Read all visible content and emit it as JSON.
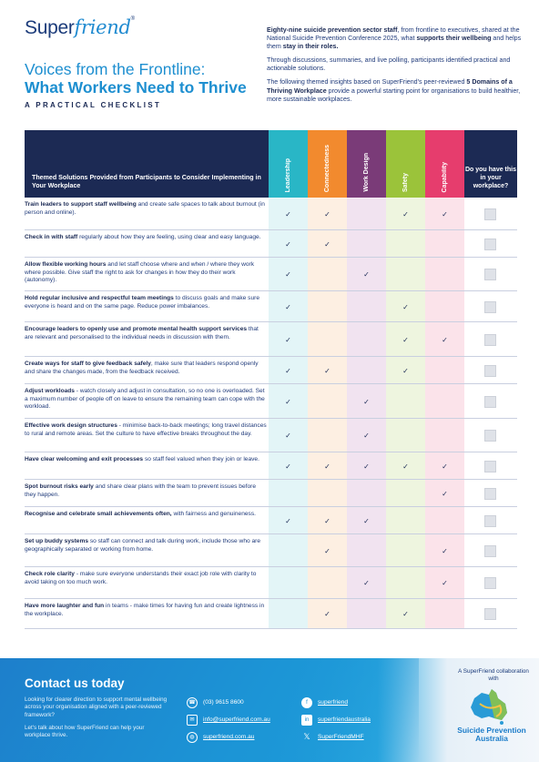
{
  "brand": {
    "logo_prefix": "Super",
    "logo_suffix": "friend",
    "logo_mark": "®"
  },
  "title": {
    "line1": "Voices from the Frontline:",
    "line2": "What Workers Need to Thrive",
    "subtitle": "A PRACTICAL CHECKLIST"
  },
  "intro": {
    "p1_bold": "Eighty-nine suicide prevention sector staff",
    "p1_a": ", from frontline to executives, shared at the National Suicide Prevention Conference 2025, what ",
    "p1_bold2": "supports their wellbeing",
    "p1_b": " and helps them ",
    "p1_bold3": "stay in their roles.",
    "p2": "Through discussions, summaries, and live polling, participants identified practical and actionable solutions.",
    "p3_a": "The following themed insights based on SuperFriend's peer-reviewed ",
    "p3_bold": "5 Domains of a Thriving Workplace",
    "p3_b": " provide a powerful starting point for organisations to build healthier, more sustainable workplaces."
  },
  "table": {
    "header": "Themed Solutions Provided from Participants to Consider Implementing in Your Workplace",
    "columns": [
      {
        "label": "Leadership",
        "color": "#29b6c6",
        "tint": "#e3f5f7"
      },
      {
        "label": "Connectedness",
        "color": "#f28a2e",
        "tint": "#fdefe2"
      },
      {
        "label": "Work Design",
        "color": "#7a3b78",
        "tint": "#f1e3f0"
      },
      {
        "label": "Safety",
        "color": "#9bc33a",
        "tint": "#eef5df"
      },
      {
        "label": "Capability",
        "color": "#e63d6d",
        "tint": "#fbe3ea"
      }
    ],
    "last_column": "Do you have this in your workplace?",
    "check_glyph": "✓",
    "rows": [
      {
        "bold": "Train leaders to support staff wellbeing",
        "text": " and create safe spaces to talk about burnout (in person and online).",
        "checks": [
          1,
          1,
          0,
          1,
          1
        ]
      },
      {
        "bold": "Check in with staff",
        "text": " regularly about how they are feeling, using clear and easy language.",
        "checks": [
          1,
          1,
          0,
          0,
          0
        ]
      },
      {
        "bold": "Allow flexible working hours",
        "text": " and let staff choose where and when / where they work where possible. Give staff the right to ask for changes in how they do their work (autonomy).",
        "checks": [
          1,
          0,
          1,
          0,
          0
        ]
      },
      {
        "bold": "Hold regular inclusive and respectful team meetings",
        "text": " to discuss goals and make sure everyone is heard and on the same page. Reduce power imbalances.",
        "checks": [
          1,
          0,
          0,
          1,
          0
        ]
      },
      {
        "bold": "Encourage leaders to openly use and promote mental health support services",
        "text": " that are relevant and personalised to the individual needs in discussion with them.",
        "checks": [
          1,
          0,
          0,
          1,
          1
        ]
      },
      {
        "bold": "Create ways for staff to give feedback safely",
        "text": ", make sure that leaders respond openly and share the changes made, from the feedback received.",
        "checks": [
          1,
          1,
          0,
          1,
          0
        ]
      },
      {
        "bold": "Adjust workloads",
        "text": " - watch closely and adjust in consultation, so no one is overloaded. Set a maximum number of people off on leave to ensure the remaining team can cope with the workload.",
        "checks": [
          1,
          0,
          1,
          0,
          0
        ]
      },
      {
        "bold": "Effective work design structures",
        "text": " - minimise back-to-back meetings; long travel distances to rural and remote areas. Set the culture to have effective breaks throughout the day.",
        "checks": [
          1,
          0,
          1,
          0,
          0
        ]
      },
      {
        "bold": "Have clear welcoming and exit processes",
        "text": " so staff feel valued when they join or leave.",
        "checks": [
          1,
          1,
          1,
          1,
          1
        ]
      },
      {
        "bold": "Spot burnout risks early",
        "text": " and share clear plans with the team to prevent issues before they happen.",
        "checks": [
          0,
          0,
          0,
          0,
          1
        ]
      },
      {
        "bold": "Recognise and celebrate small achievements often,",
        "text": " with fairness and genuineness.",
        "checks": [
          1,
          1,
          1,
          0,
          0
        ]
      },
      {
        "bold": "Set up buddy systems",
        "text": " so staff can connect and talk during work, include those who are geographically separated or working from home.",
        "checks": [
          0,
          1,
          0,
          0,
          1
        ]
      },
      {
        "bold": "Check role clarity",
        "text": " - make sure everyone understands their exact job role with clarity to avoid taking on too much work.",
        "checks": [
          0,
          0,
          1,
          0,
          1
        ]
      },
      {
        "bold": "Have more laughter and fun",
        "text": " in teams - make times for having fun and create lightness in the workplace.",
        "checks": [
          0,
          1,
          0,
          1,
          0
        ]
      }
    ]
  },
  "footer": {
    "title": "Contact us today",
    "text1": "Looking for clearer direction to support mental wellbeing across your organisation aligned with a peer-reviewed framework?",
    "text2": "Let's talk about how SuperFriend can help your workplace thrive.",
    "phone": "(03) 9615 8600",
    "email": "info@superfriend.com.au",
    "web": "superfriend.com.au",
    "facebook": "superfriend",
    "linkedin": "superfriendaustralia",
    "x": "SuperFriendMHF",
    "collab": "A SuperFriend collaboration with",
    "partner": "Suicide Prevention Australia"
  }
}
